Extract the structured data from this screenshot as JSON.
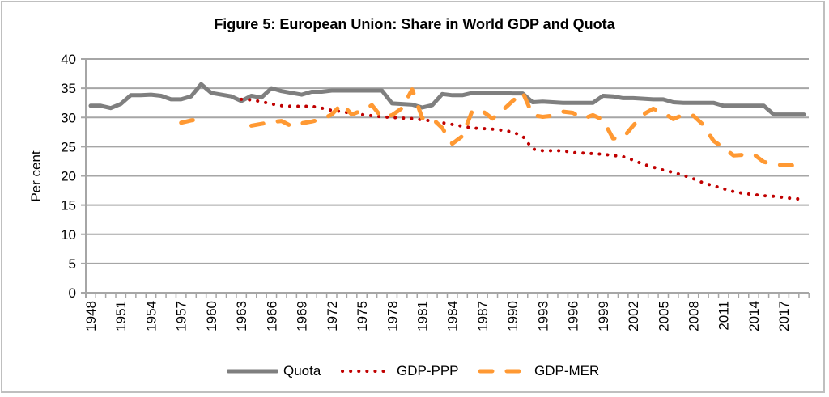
{
  "chart_data": {
    "type": "line",
    "title": "Figure 5: European Union: Share in World GDP and Quota",
    "xlabel": "",
    "ylabel": "Per cent",
    "ylim": [
      0,
      40
    ],
    "yticks": [
      0,
      5,
      10,
      15,
      20,
      25,
      30,
      35,
      40
    ],
    "xlim": [
      1948,
      2019
    ],
    "xtick_labels": [
      "1948",
      "1951",
      "1954",
      "1957",
      "1960",
      "1963",
      "1966",
      "1969",
      "1972",
      "1975",
      "1978",
      "1981",
      "1984",
      "1987",
      "1990",
      "1993",
      "1996",
      "1999",
      "2002",
      "2005",
      "2008",
      "2011",
      "2014",
      "2017"
    ],
    "grid": "horizontal",
    "legend_position": "bottom",
    "x": [
      1948,
      1949,
      1950,
      1951,
      1952,
      1953,
      1954,
      1955,
      1956,
      1957,
      1958,
      1959,
      1960,
      1961,
      1962,
      1963,
      1964,
      1965,
      1966,
      1967,
      1968,
      1969,
      1970,
      1971,
      1972,
      1973,
      1974,
      1975,
      1976,
      1977,
      1978,
      1979,
      1980,
      1981,
      1982,
      1983,
      1984,
      1985,
      1986,
      1987,
      1988,
      1989,
      1990,
      1991,
      1992,
      1993,
      1994,
      1995,
      1996,
      1997,
      1998,
      1999,
      2000,
      2001,
      2002,
      2003,
      2004,
      2005,
      2006,
      2007,
      2008,
      2009,
      2010,
      2011,
      2012,
      2013,
      2014,
      2015,
      2016,
      2017,
      2018,
      2019
    ],
    "series": [
      {
        "name": "Quota",
        "color": "#7f7f7f",
        "style": "solid",
        "values": [
          32,
          32,
          31.6,
          32.3,
          33.8,
          33.8,
          33.9,
          33.7,
          33.1,
          33.1,
          33.6,
          35.7,
          34.2,
          33.9,
          33.6,
          32.8,
          33.7,
          33.4,
          35,
          34.5,
          34.2,
          33.9,
          34.4,
          34.4,
          34.6,
          34.6,
          34.6,
          34.6,
          34.6,
          34.6,
          32.4,
          32.3,
          32.2,
          31.7,
          32.1,
          34,
          33.8,
          33.8,
          34.2,
          34.2,
          34.2,
          34.2,
          34.1,
          34.1,
          32.6,
          32.7,
          32.6,
          32.5,
          32.5,
          32.5,
          32.5,
          33.7,
          33.6,
          33.3,
          33.3,
          33.2,
          33.1,
          33.1,
          32.6,
          32.5,
          32.5,
          32.5,
          32.5,
          32,
          32,
          32,
          32,
          32,
          30.5,
          30.5,
          30.5,
          30.5
        ]
      },
      {
        "name": "GDP-PPP",
        "color": "#c00000",
        "style": "dotted",
        "values": [
          null,
          null,
          null,
          null,
          null,
          null,
          null,
          null,
          null,
          null,
          null,
          null,
          null,
          null,
          null,
          33.1,
          33,
          32.7,
          32.3,
          32,
          31.9,
          31.9,
          31.9,
          31.6,
          31.2,
          31,
          30.7,
          30.5,
          30.3,
          30.1,
          30,
          29.9,
          29.8,
          29.6,
          29.4,
          29.1,
          28.8,
          28.5,
          28.2,
          28.1,
          28,
          27.8,
          27.5,
          26.8,
          24.6,
          24.3,
          24.3,
          24.3,
          24,
          23.9,
          23.8,
          23.7,
          23.5,
          23.3,
          22.7,
          22,
          21.5,
          21,
          20.6,
          20.1,
          19.5,
          18.8,
          18.3,
          17.8,
          17.3,
          17,
          16.8,
          16.6,
          16.5,
          16.3,
          16.1,
          16
        ]
      },
      {
        "name": "GDP-MER",
        "color": "#ff9933",
        "style": "dashed",
        "values": [
          null,
          null,
          null,
          null,
          null,
          null,
          null,
          null,
          null,
          29.1,
          29.5,
          29.7,
          null,
          null,
          null,
          null,
          28.6,
          28.9,
          29.2,
          29.4,
          28.5,
          29,
          29.3,
          29.7,
          30.5,
          32.3,
          30.5,
          31.2,
          32.1,
          30,
          30.4,
          31.6,
          34.8,
          29.9,
          29.8,
          28.2,
          25.5,
          26.8,
          31.2,
          31.1,
          29.8,
          31.2,
          32.8,
          34.3,
          30.4,
          30.1,
          30.3,
          31,
          30.8,
          29.8,
          30.4,
          29.6,
          26.4,
          26.5,
          28.6,
          30.5,
          31.5,
          30.8,
          29.7,
          30.5,
          30.3,
          28.7,
          26,
          24.8,
          23.5,
          23.6,
          23.7,
          22.4,
          22,
          21.8,
          21.8,
          20.8
        ]
      }
    ]
  }
}
